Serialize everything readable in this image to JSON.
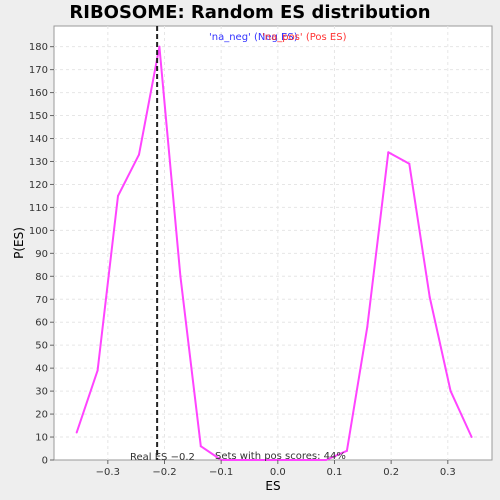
{
  "chart_data": {
    "type": "line",
    "title": "RIBOSOME: Random ES distribution",
    "xlabel": "ES",
    "ylabel": "P(ES)",
    "xlim": [
      -0.395,
      0.378
    ],
    "ylim": [
      0,
      189
    ],
    "xticks": [
      -0.3,
      -0.2,
      -0.1,
      0.0,
      0.1,
      0.2,
      0.3
    ],
    "xtick_labels": [
      "−0.3",
      "−0.2",
      "−0.1",
      "0.0",
      "0.1",
      "0.2",
      "0.3"
    ],
    "yticks": [
      0,
      10,
      20,
      30,
      40,
      50,
      60,
      70,
      80,
      90,
      100,
      110,
      120,
      130,
      140,
      150,
      160,
      170,
      180
    ],
    "grid": true,
    "legend": {
      "placement": "top-center",
      "entries": [
        {
          "label": "'na_neg' (Neg ES)",
          "color": "#3333ff"
        },
        {
          "label": "'na_pos' (Pos ES)",
          "color": "#ff3333"
        }
      ]
    },
    "series": [
      {
        "color": "#ff44ff",
        "x": [
          -0.355,
          -0.318,
          -0.282,
          -0.245,
          -0.209,
          -0.172,
          -0.136,
          -0.1,
          0.085,
          0.122,
          0.158,
          0.195,
          0.232,
          0.268,
          0.305,
          0.342
        ],
        "y": [
          12,
          39,
          115,
          133,
          180,
          80,
          6,
          0,
          0,
          4,
          58,
          134,
          129,
          71,
          30,
          10
        ]
      }
    ],
    "real_es": {
      "value": -0.213,
      "label": "Real ES −0.2"
    },
    "pos_scores_note": "Sets with pos scores: 44%"
  }
}
